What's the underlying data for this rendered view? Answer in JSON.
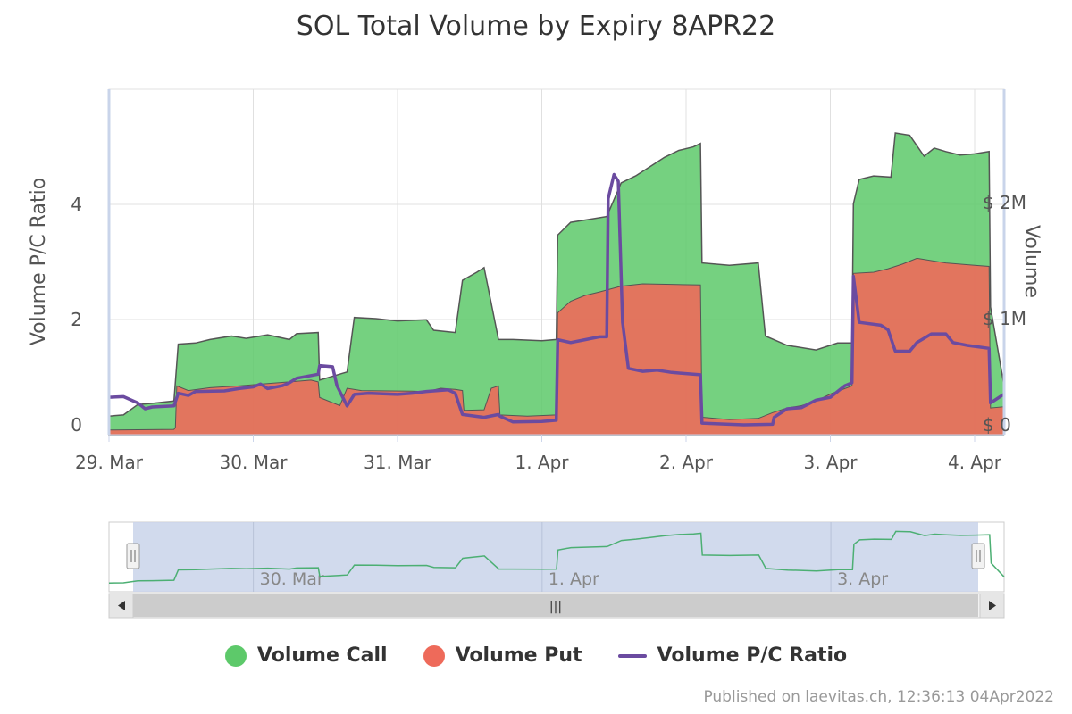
{
  "title": "SOL Total Volume by Expiry 8APR22",
  "credit": "Published on laevitas.ch, 12:36:13 04Apr2022",
  "colors": {
    "call": "#5dc96a",
    "put": "#ee6a5a",
    "ratio": "#6b4ba0",
    "area_stroke": "#555555",
    "grid": "#e0e0e0",
    "navigator_fill": "#c9d4ea",
    "navigator_line": "#4caf73"
  },
  "legend": [
    {
      "key": "call",
      "label": "Volume Call",
      "shape": "circle"
    },
    {
      "key": "put",
      "label": "Volume Put",
      "shape": "circle"
    },
    {
      "key": "ratio",
      "label": "Volume P/C Ratio",
      "shape": "line"
    }
  ],
  "navigator": {
    "labels": [
      "30. Mar",
      "1. Apr",
      "3. Apr"
    ],
    "scroll_grip": "|||"
  },
  "chart_data": {
    "type": "area",
    "title": "SOL Total Volume by Expiry 8APR22",
    "x_ticks": [
      "29. Mar",
      "30. Mar",
      "31. Mar",
      "1. Apr",
      "2. Apr",
      "3. Apr",
      "4. Apr"
    ],
    "left_axis": {
      "label": "Volume P/C Ratio",
      "ticks": [
        "0",
        "2",
        "4"
      ],
      "range": [
        0,
        6
      ]
    },
    "right_axis": {
      "label": "Volume",
      "ticks": [
        "$ 0",
        "$ 1M",
        "$ 2M"
      ],
      "range": [
        0,
        3000000
      ]
    },
    "x_range_days": [
      0,
      6.2
    ],
    "grid": true,
    "legend_position": "bottom",
    "series": [
      {
        "name": "Volume Put",
        "axis": "right",
        "points": [
          [
            0,
            40000
          ],
          [
            0.45,
            45000
          ],
          [
            0.46,
            60000
          ],
          [
            0.47,
            420000
          ],
          [
            0.55,
            380000
          ],
          [
            0.7,
            405000
          ],
          [
            0.9,
            420000
          ],
          [
            1.1,
            440000
          ],
          [
            1.3,
            460000
          ],
          [
            1.4,
            470000
          ],
          [
            1.45,
            455000
          ],
          [
            1.46,
            320000
          ],
          [
            1.6,
            250000
          ],
          [
            1.65,
            400000
          ],
          [
            1.75,
            380000
          ],
          [
            2.1,
            375000
          ],
          [
            2.2,
            370000
          ],
          [
            2.3,
            400000
          ],
          [
            2.4,
            390000
          ],
          [
            2.45,
            380000
          ],
          [
            2.46,
            210000
          ],
          [
            2.6,
            215000
          ],
          [
            2.65,
            400000
          ],
          [
            2.7,
            420000
          ],
          [
            2.71,
            170000
          ],
          [
            2.9,
            160000
          ],
          [
            3.1,
            170000
          ],
          [
            3.11,
            1050000
          ],
          [
            3.2,
            1150000
          ],
          [
            3.3,
            1200000
          ],
          [
            3.4,
            1230000
          ],
          [
            3.55,
            1280000
          ],
          [
            3.7,
            1300000
          ],
          [
            3.9,
            1295000
          ],
          [
            4.1,
            1290000
          ],
          [
            4.11,
            150000
          ],
          [
            4.3,
            130000
          ],
          [
            4.5,
            140000
          ],
          [
            4.6,
            190000
          ],
          [
            4.7,
            230000
          ],
          [
            4.8,
            250000
          ],
          [
            4.9,
            290000
          ],
          [
            5.0,
            350000
          ],
          [
            5.15,
            420000
          ],
          [
            5.16,
            1390000
          ],
          [
            5.3,
            1400000
          ],
          [
            5.4,
            1430000
          ],
          [
            5.5,
            1470000
          ],
          [
            5.6,
            1520000
          ],
          [
            5.8,
            1480000
          ],
          [
            6.0,
            1460000
          ],
          [
            6.1,
            1450000
          ],
          [
            6.11,
            230000
          ],
          [
            6.2,
            240000
          ]
        ]
      },
      {
        "name": "Volume Call",
        "axis": "right",
        "points": [
          [
            0,
            160000
          ],
          [
            0.1,
            170000
          ],
          [
            0.2,
            260000
          ],
          [
            0.3,
            270000
          ],
          [
            0.45,
            290000
          ],
          [
            0.48,
            780000
          ],
          [
            0.6,
            790000
          ],
          [
            0.7,
            820000
          ],
          [
            0.85,
            850000
          ],
          [
            0.95,
            830000
          ],
          [
            1.1,
            860000
          ],
          [
            1.25,
            820000
          ],
          [
            1.3,
            870000
          ],
          [
            1.45,
            880000
          ],
          [
            1.46,
            470000
          ],
          [
            1.65,
            540000
          ],
          [
            1.7,
            1010000
          ],
          [
            1.85,
            1000000
          ],
          [
            2.0,
            980000
          ],
          [
            2.2,
            990000
          ],
          [
            2.25,
            900000
          ],
          [
            2.4,
            880000
          ],
          [
            2.45,
            1330000
          ],
          [
            2.55,
            1400000
          ],
          [
            2.6,
            1440000
          ],
          [
            2.7,
            820000
          ],
          [
            2.8,
            820000
          ],
          [
            3.0,
            810000
          ],
          [
            3.1,
            820000
          ],
          [
            3.11,
            1720000
          ],
          [
            3.2,
            1830000
          ],
          [
            3.35,
            1860000
          ],
          [
            3.45,
            1880000
          ],
          [
            3.55,
            2170000
          ],
          [
            3.65,
            2230000
          ],
          [
            3.75,
            2310000
          ],
          [
            3.85,
            2390000
          ],
          [
            3.95,
            2450000
          ],
          [
            4.05,
            2480000
          ],
          [
            4.1,
            2510000
          ],
          [
            4.11,
            1480000
          ],
          [
            4.3,
            1460000
          ],
          [
            4.5,
            1480000
          ],
          [
            4.55,
            850000
          ],
          [
            4.7,
            770000
          ],
          [
            4.9,
            730000
          ],
          [
            5.05,
            790000
          ],
          [
            5.15,
            790000
          ],
          [
            5.16,
            1990000
          ],
          [
            5.2,
            2200000
          ],
          [
            5.3,
            2230000
          ],
          [
            5.42,
            2220000
          ],
          [
            5.45,
            2600000
          ],
          [
            5.55,
            2580000
          ],
          [
            5.65,
            2400000
          ],
          [
            5.72,
            2470000
          ],
          [
            5.8,
            2440000
          ],
          [
            5.9,
            2410000
          ],
          [
            6.0,
            2420000
          ],
          [
            6.1,
            2440000
          ],
          [
            6.11,
            1100000
          ],
          [
            6.2,
            450000
          ]
        ]
      },
      {
        "name": "Volume P/C Ratio",
        "axis": "left",
        "points": [
          [
            0,
            0.65
          ],
          [
            0.1,
            0.66
          ],
          [
            0.2,
            0.55
          ],
          [
            0.25,
            0.45
          ],
          [
            0.3,
            0.48
          ],
          [
            0.45,
            0.5
          ],
          [
            0.48,
            0.72
          ],
          [
            0.55,
            0.68
          ],
          [
            0.6,
            0.75
          ],
          [
            0.8,
            0.76
          ],
          [
            0.9,
            0.8
          ],
          [
            1.0,
            0.83
          ],
          [
            1.05,
            0.88
          ],
          [
            1.1,
            0.8
          ],
          [
            1.2,
            0.85
          ],
          [
            1.25,
            0.9
          ],
          [
            1.3,
            0.98
          ],
          [
            1.45,
            1.05
          ],
          [
            1.46,
            1.2
          ],
          [
            1.55,
            1.18
          ],
          [
            1.58,
            0.85
          ],
          [
            1.65,
            0.5
          ],
          [
            1.7,
            0.7
          ],
          [
            1.8,
            0.72
          ],
          [
            2.0,
            0.7
          ],
          [
            2.1,
            0.72
          ],
          [
            2.2,
            0.75
          ],
          [
            2.35,
            0.78
          ],
          [
            2.4,
            0.72
          ],
          [
            2.45,
            0.35
          ],
          [
            2.6,
            0.3
          ],
          [
            2.7,
            0.35
          ],
          [
            2.71,
            0.32
          ],
          [
            2.8,
            0.22
          ],
          [
            3.0,
            0.23
          ],
          [
            3.1,
            0.25
          ],
          [
            3.11,
            1.65
          ],
          [
            3.2,
            1.6
          ],
          [
            3.3,
            1.65
          ],
          [
            3.4,
            1.7
          ],
          [
            3.45,
            1.7
          ],
          [
            3.46,
            4.1
          ],
          [
            3.5,
            4.52
          ],
          [
            3.53,
            4.4
          ],
          [
            3.56,
            1.95
          ],
          [
            3.6,
            1.15
          ],
          [
            3.7,
            1.1
          ],
          [
            3.8,
            1.12
          ],
          [
            3.9,
            1.08
          ],
          [
            4.0,
            1.06
          ],
          [
            4.1,
            1.04
          ],
          [
            4.11,
            0.2
          ],
          [
            4.3,
            0.18
          ],
          [
            4.4,
            0.17
          ],
          [
            4.6,
            0.18
          ],
          [
            4.61,
            0.3
          ],
          [
            4.7,
            0.45
          ],
          [
            4.8,
            0.47
          ],
          [
            4.9,
            0.6
          ],
          [
            5.0,
            0.65
          ],
          [
            5.05,
            0.75
          ],
          [
            5.1,
            0.85
          ],
          [
            5.15,
            0.9
          ],
          [
            5.16,
            2.75
          ],
          [
            5.2,
            1.95
          ],
          [
            5.35,
            1.9
          ],
          [
            5.4,
            1.82
          ],
          [
            5.45,
            1.45
          ],
          [
            5.55,
            1.45
          ],
          [
            5.6,
            1.6
          ],
          [
            5.7,
            1.75
          ],
          [
            5.8,
            1.75
          ],
          [
            5.85,
            1.6
          ],
          [
            5.95,
            1.55
          ],
          [
            6.1,
            1.5
          ],
          [
            6.11,
            0.55
          ],
          [
            6.2,
            0.7
          ]
        ]
      }
    ]
  }
}
